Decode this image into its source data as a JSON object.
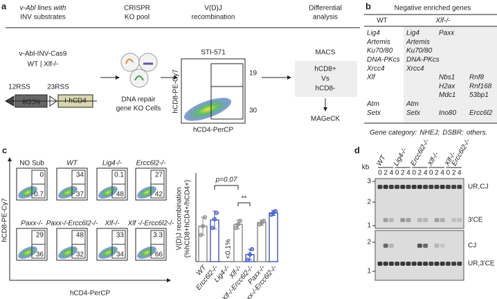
{
  "panel_a": {
    "letter": "a",
    "headers": [
      [
        "v-Abl lines with",
        "INV substrates"
      ],
      [
        "CRISPR",
        "KO pool"
      ],
      [
        "V(D)J",
        "recombination"
      ],
      [
        "Differential",
        "analysis"
      ]
    ],
    "cell_line": "v-Abl-INV-Cas9",
    "genotypes": "WT | Xlf-/-",
    "rss": [
      "12RSS",
      "23RSS"
    ],
    "construct": [
      "hCD8",
      "I-hCD4"
    ],
    "pool": [
      "DNA repair",
      "gene KO Cells"
    ],
    "flow": {
      "treatment": "STI-571",
      "y_axis": "hCD8-PE-Cy7",
      "x_axis": "hCD4-PerCP",
      "gates": [
        19,
        30
      ]
    },
    "analysis": {
      "method": "MACS",
      "comparison": [
        "hCD8+",
        "Vs",
        "hCD8-"
      ],
      "tool": "MAGeCK"
    }
  },
  "panel_b": {
    "letter": "b",
    "title": "Negative enriched genes",
    "columns": [
      "WT",
      "Xlf-/-"
    ],
    "legend_prefix": "Gene category:",
    "categories": [
      {
        "label": "NHEJ;",
        "color": "#222222"
      },
      {
        "label": "DSBR;",
        "color": "#4a5fc1"
      },
      {
        "label": "others.",
        "color": "#e03030"
      }
    ],
    "gene_columns": [
      [
        {
          "name": "Lig4",
          "category": 0
        },
        {
          "name": "Artemis",
          "category": 0
        },
        {
          "name": "Ku70/80",
          "category": 0
        },
        {
          "name": "DNA-PKcs",
          "category": 0
        },
        {
          "name": "Xrcc4",
          "category": 0
        },
        {
          "name": "Xlf",
          "category": 0
        },
        null,
        null,
        {
          "name": "Atm",
          "category": 1
        },
        {
          "name": "Setx",
          "category": 2
        }
      ],
      [
        {
          "name": "Lig4",
          "category": 0
        },
        {
          "name": "Artemis",
          "category": 0
        },
        {
          "name": "Ku70/80",
          "category": 0
        },
        {
          "name": "DNA-PKcs",
          "category": 0
        },
        {
          "name": "Xrcc4",
          "category": 0
        },
        null,
        null,
        null,
        {
          "name": "Atm",
          "category": 1
        },
        {
          "name": "Setx",
          "category": 2
        }
      ],
      [
        {
          "name": "Paxx",
          "category": 0
        },
        null,
        null,
        null,
        null,
        {
          "name": "Nbs1",
          "category": 1
        },
        {
          "name": "H2ax",
          "category": 1
        },
        {
          "name": "Mdc1",
          "category": 1
        },
        null,
        {
          "name": "Ino80",
          "category": 2
        }
      ],
      [
        null,
        null,
        null,
        null,
        null,
        {
          "name": "Rnf8",
          "category": 1
        },
        {
          "name": "Rnf168",
          "category": 1
        },
        {
          "name": "53bp1",
          "category": 1
        },
        null,
        {
          "name": "Ercc6l2",
          "category": 2
        }
      ]
    ]
  },
  "panel_c": {
    "letter": "c",
    "flow": {
      "y_axis": "hCD8-PE-Cy7",
      "x_axis": "hCD4-PerCP",
      "plots": [
        {
          "label": "NO Sub",
          "top": 0,
          "bottom": 0.7
        },
        {
          "label": "WT",
          "top": 34,
          "bottom": 37
        },
        {
          "label": "Lig4-/-",
          "top": 0.1,
          "bottom": 48
        },
        {
          "label": "Ercc6l2-/-",
          "top": 27,
          "bottom": 42
        },
        {
          "label": "Paxx-/-",
          "top": 29,
          "bottom": 36
        },
        {
          "label": "Paxx-/-Ercc6l2-/-",
          "top": 48,
          "bottom": 32
        },
        {
          "label": "Xlf-/-",
          "top": 33,
          "bottom": 34
        },
        {
          "label": "Xlf -/-Ercc6l2-/-",
          "top": 3.3,
          "bottom": 66
        }
      ]
    },
    "bars": {
      "type": "bar",
      "y_label": [
        "V(D)J recombination",
        "(%hCD8+hCD4+/hCD4+)"
      ],
      "categories": [
        "WT",
        "Ercc6l2-/-",
        "Lig4-/-",
        "Xlf-/-",
        "Xlf-/-Ercc6l2-/-",
        "Paxx-/-",
        "Paxx-/-Ercc6l2-/-"
      ],
      "values": [
        40,
        47,
        0.1,
        42,
        8,
        44,
        55
      ],
      "value_labels": [
        null,
        null,
        "<0.1%",
        null,
        null,
        null,
        null
      ],
      "errors": [
        10,
        10,
        null,
        5,
        6,
        3,
        3
      ],
      "replicates": [
        [
          30,
          40,
          50
        ],
        [
          38,
          48,
          55
        ],
        null,
        [
          38,
          42,
          46
        ],
        [
          2,
          8,
          14
        ],
        [
          42,
          44,
          46
        ],
        [
          53,
          55,
          57
        ]
      ],
      "colors": [
        "#8c8c8c",
        "#4a5fc1",
        "#8c8c8c",
        "#8c8c8c",
        "#4a5fc1",
        "#8c8c8c",
        "#4a5fc1"
      ],
      "ylim": [
        0,
        100
      ],
      "annotations": [
        "p=0.07",
        "**"
      ]
    }
  },
  "panel_d": {
    "letter": "d",
    "unit": "kb",
    "groups": [
      {
        "name": [
          "WT"
        ],
        "times": [
          0,
          2,
          4
        ]
      },
      {
        "name": [
          "Lig4-/-"
        ],
        "times": [
          0,
          2,
          4
        ]
      },
      {
        "name": [
          "Ercc6l2-/-"
        ],
        "times": [
          0,
          2,
          4
        ]
      },
      {
        "name": [
          "Xlf-/-"
        ],
        "times": [
          0,
          2,
          4
        ]
      },
      {
        "name": [
          "Xlf-/-",
          "Ercc6l2-/-"
        ],
        "times": [
          0,
          2,
          4
        ]
      }
    ],
    "top_blot": {
      "ladder": [
        3,
        2,
        1
      ],
      "bands": [
        "UR,CJ",
        "3'CE"
      ]
    },
    "bottom_blot": {
      "ladder": [
        2,
        1
      ],
      "bands": [
        "CJ",
        "UR,3'CE"
      ]
    }
  }
}
